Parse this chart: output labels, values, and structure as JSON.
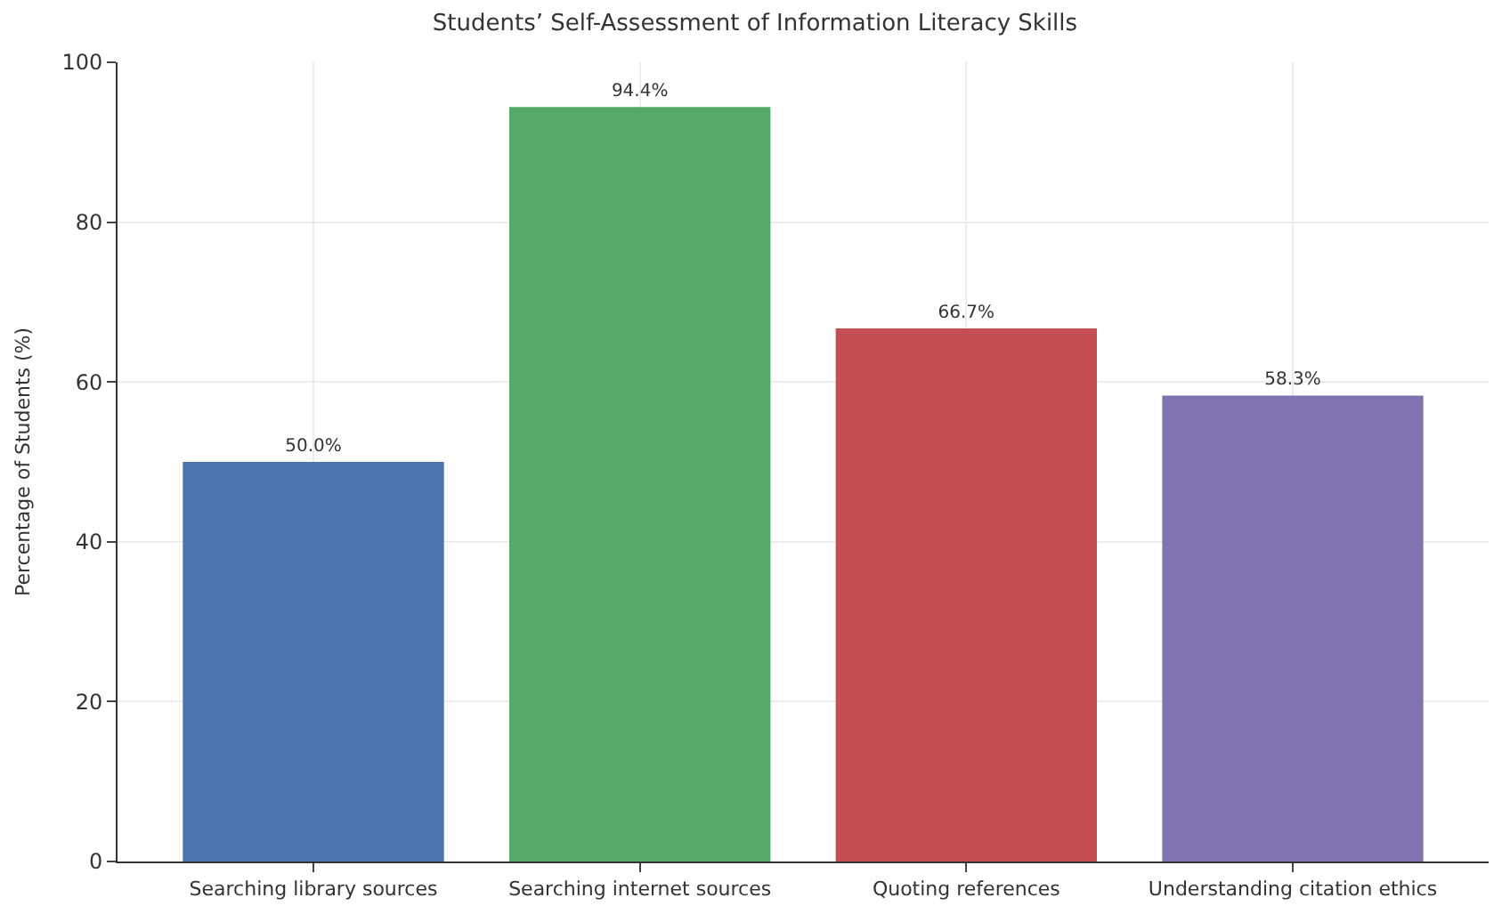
{
  "chart_data": {
    "type": "bar",
    "title": "Students’ Self-Assessment of Information Literacy Skills",
    "ylabel": "Percentage of Students (%)",
    "categories": [
      "Searching library sources",
      "Searching internet sources",
      "Quoting references",
      "Understanding citation ethics"
    ],
    "values": [
      50.0,
      94.4,
      66.7,
      58.3
    ],
    "colors": [
      "#4c72b0",
      "#55a868",
      "#c44e52",
      "#8172b2"
    ],
    "value_labels": [
      "50.0%",
      "94.4%",
      "66.7%",
      "58.3%"
    ],
    "ylim": [
      0,
      100
    ],
    "yticks": [
      0,
      20,
      40,
      60,
      80,
      100
    ],
    "grid": true
  }
}
